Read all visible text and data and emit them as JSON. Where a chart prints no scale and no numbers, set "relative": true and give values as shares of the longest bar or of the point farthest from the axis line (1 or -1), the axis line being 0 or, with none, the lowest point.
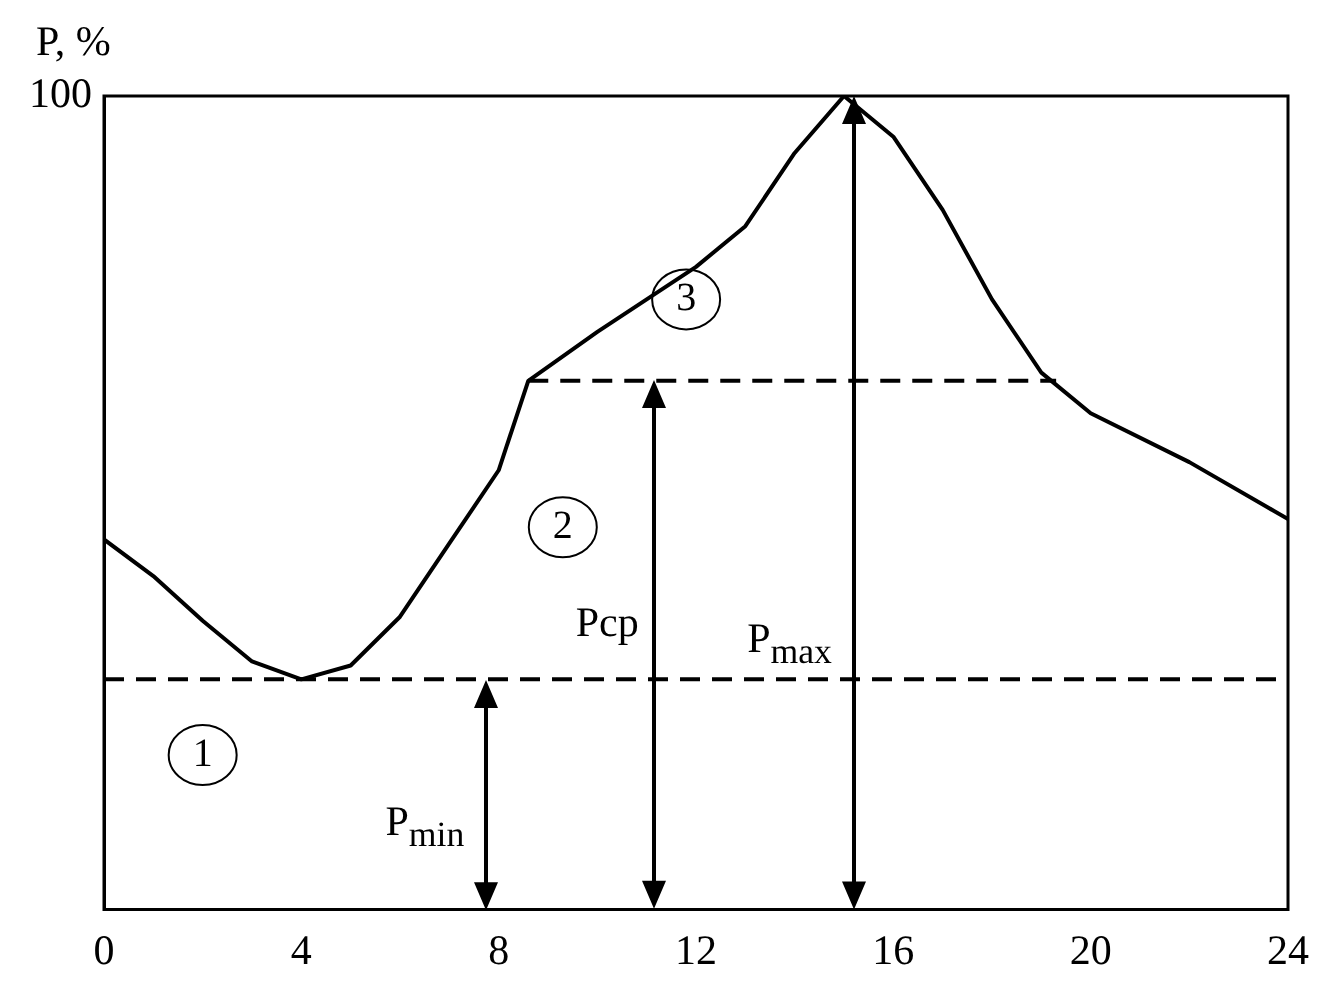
{
  "chart_data": {
    "type": "line",
    "relative": true,
    "ylabel": "P, %",
    "xlim": [
      0,
      24
    ],
    "xticks": [
      0,
      4,
      8,
      12,
      16,
      20,
      24
    ],
    "grid": false,
    "legend": false,
    "marker": "none",
    "series": [
      {
        "color": "#000000",
        "line_style": "solid",
        "x": [
          0,
          1,
          2,
          3,
          4,
          5,
          6,
          7,
          8,
          8.6,
          10,
          12,
          13,
          14,
          15,
          16,
          17,
          18,
          19,
          20,
          22,
          24
        ],
        "values": [
          0.455,
          0.41,
          0.355,
          0.305,
          0.283,
          0.3,
          0.36,
          0.45,
          0.54,
          0.65,
          0.71,
          0.79,
          0.84,
          0.93,
          1,
          0.95,
          0.86,
          0.75,
          0.66,
          0.61,
          0.55,
          0.48
        ]
      },
      {
        "color": "#000000",
        "line_style": "dashed",
        "x": [
          8.6,
          19.3
        ],
        "values": [
          0.65,
          0.65
        ]
      }
    ],
    "ref_lines": [
      {
        "axis": "y",
        "value": 0.283,
        "color": "#000000",
        "line_style": "dashed"
      }
    ],
    "annotations": [
      "P$_{min}$",
      "Pcp",
      "P$_{max}$",
      {
        "text": "1",
        "x": 2,
        "y": 0.19
      },
      {
        "text": "2",
        "x": 9.3,
        "y": 0.47
      },
      {
        "text": "3",
        "x": 11.8,
        "y": 0.75
      },
      "100"
    ]
  }
}
